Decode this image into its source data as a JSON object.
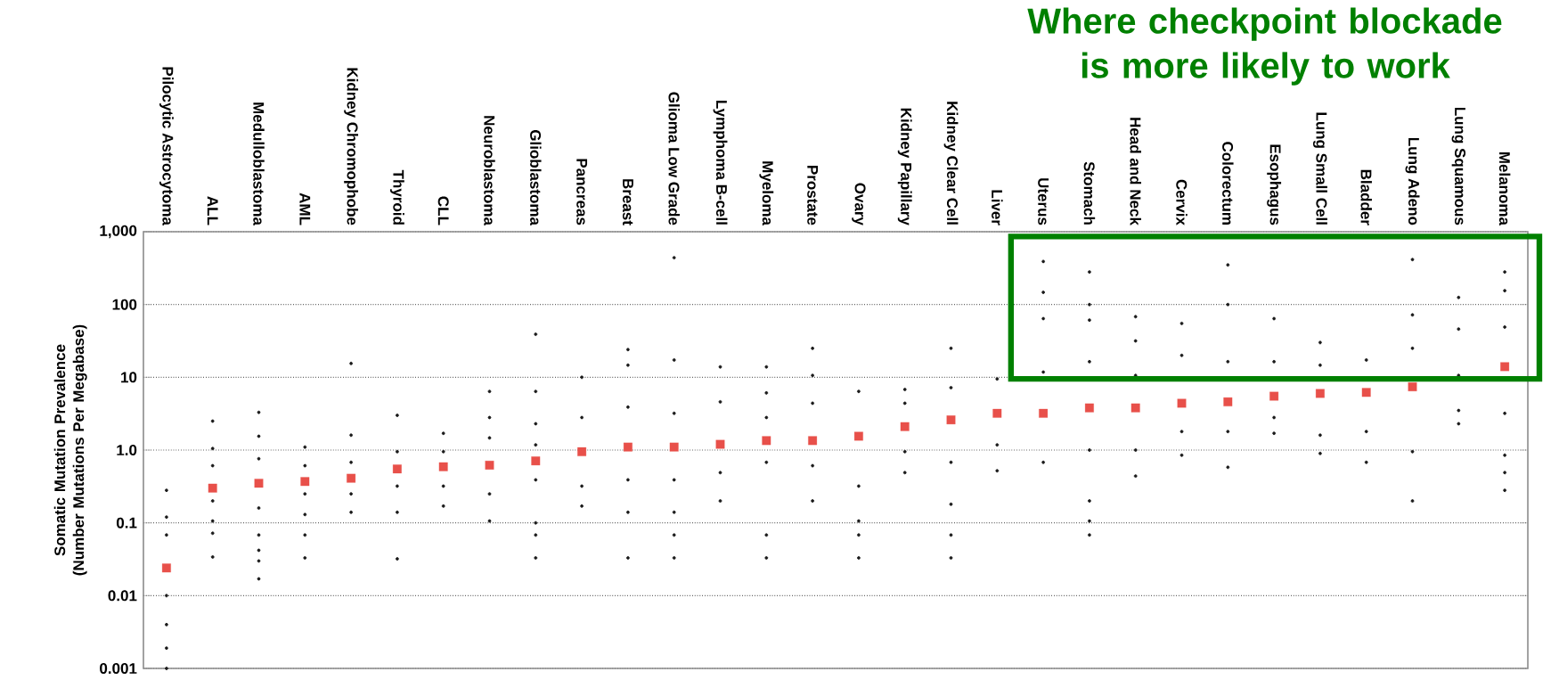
{
  "chart_data": {
    "type": "scatter",
    "annotations": [
      "Where checkpoint blockade is more likely to work"
    ],
    "ylabel": "Somatic Mutation Prevalence (Number Mutations Per Megabase)",
    "categories": [
      "Pilocytic Astrocytoma",
      "ALL",
      "Medulloblastoma",
      "AML",
      "Kidney Chromophobe",
      "Thyroid",
      "CLL",
      "Neuroblastoma",
      "Glioblastoma",
      "Pancreas",
      "Breast",
      "Glioma Low Grade",
      "Lymphoma B-cell",
      "Myeloma",
      "Prostate",
      "Ovary",
      "Kidney Papillary",
      "Kidney Clear Cell",
      "Liver",
      "Uterus",
      "Stomach",
      "Head and Neck",
      "Cervix",
      "Colorectum",
      "Esophagus",
      "Lung Small Cell",
      "Bladder",
      "Lung Adeno",
      "Lung Squamous",
      "Melanoma"
    ],
    "log": true,
    "grid": "y",
    "marker": "circle",
    "ylim": [
      0.001,
      1000
    ],
    "yticks": [
      0.001,
      0.01,
      0.1,
      {
        "value": 1,
        "label": "1.0"
      },
      10,
      100,
      {
        "value": 1000,
        "label": "1,000"
      }
    ],
    "series": [
      {
        "type": "scatter",
        "color": "#1a1a1a",
        "x": [
          "Pilocytic Astrocytoma",
          "Pilocytic Astrocytoma",
          "Pilocytic Astrocytoma",
          "Pilocytic Astrocytoma",
          "Pilocytic Astrocytoma",
          "Pilocytic Astrocytoma",
          "Pilocytic Astrocytoma",
          "ALL",
          "ALL",
          "ALL",
          "ALL",
          "ALL",
          "ALL",
          "ALL",
          "Medulloblastoma",
          "Medulloblastoma",
          "Medulloblastoma",
          "Medulloblastoma",
          "Medulloblastoma",
          "Medulloblastoma",
          "Medulloblastoma",
          "Medulloblastoma",
          "AML",
          "AML",
          "AML",
          "AML",
          "AML",
          "AML",
          "Kidney Chromophobe",
          "Kidney Chromophobe",
          "Kidney Chromophobe",
          "Kidney Chromophobe",
          "Kidney Chromophobe",
          "Thyroid",
          "Thyroid",
          "Thyroid",
          "Thyroid",
          "Thyroid",
          "CLL",
          "CLL",
          "CLL",
          "CLL",
          "Neuroblastoma",
          "Neuroblastoma",
          "Neuroblastoma",
          "Neuroblastoma",
          "Neuroblastoma",
          "Glioblastoma",
          "Glioblastoma",
          "Glioblastoma",
          "Glioblastoma",
          "Glioblastoma",
          "Glioblastoma",
          "Glioblastoma",
          "Glioblastoma",
          "Pancreas",
          "Pancreas",
          "Pancreas",
          "Pancreas",
          "Breast",
          "Breast",
          "Breast",
          "Breast",
          "Breast",
          "Breast",
          "Glioma Low Grade",
          "Glioma Low Grade",
          "Glioma Low Grade",
          "Glioma Low Grade",
          "Glioma Low Grade",
          "Glioma Low Grade",
          "Glioma Low Grade",
          "Lymphoma B-cell",
          "Lymphoma B-cell",
          "Lymphoma B-cell",
          "Lymphoma B-cell",
          "Myeloma",
          "Myeloma",
          "Myeloma",
          "Myeloma",
          "Myeloma",
          "Myeloma",
          "Prostate",
          "Prostate",
          "Prostate",
          "Prostate",
          "Prostate",
          "Ovary",
          "Ovary",
          "Ovary",
          "Ovary",
          "Ovary",
          "Kidney Papillary",
          "Kidney Papillary",
          "Kidney Papillary",
          "Kidney Papillary",
          "Kidney Clear Cell",
          "Kidney Clear Cell",
          "Kidney Clear Cell",
          "Kidney Clear Cell",
          "Kidney Clear Cell",
          "Kidney Clear Cell",
          "Liver",
          "Liver",
          "Liver",
          "Uterus",
          "Uterus",
          "Uterus",
          "Uterus",
          "Uterus",
          "Stomach",
          "Stomach",
          "Stomach",
          "Stomach",
          "Stomach",
          "Stomach",
          "Stomach",
          "Stomach",
          "Head and Neck",
          "Head and Neck",
          "Head and Neck",
          "Head and Neck",
          "Head and Neck",
          "Cervix",
          "Cervix",
          "Cervix",
          "Cervix",
          "Colorectum",
          "Colorectum",
          "Colorectum",
          "Colorectum",
          "Colorectum",
          "Esophagus",
          "Esophagus",
          "Esophagus",
          "Esophagus",
          "Lung Small Cell",
          "Lung Small Cell",
          "Lung Small Cell",
          "Lung Small Cell",
          "Bladder",
          "Bladder",
          "Bladder",
          "Lung Adeno",
          "Lung Adeno",
          "Lung Adeno",
          "Lung Adeno",
          "Lung Adeno",
          "Lung Squamous",
          "Lung Squamous",
          "Lung Squamous",
          "Lung Squamous",
          "Lung Squamous",
          "Melanoma",
          "Melanoma",
          "Melanoma",
          "Melanoma",
          "Melanoma",
          "Melanoma",
          "Melanoma"
        ],
        "values": [
          0.001,
          0.0019,
          0.004,
          0.01,
          0.068,
          0.12,
          0.28,
          0.034,
          0.072,
          0.106,
          0.2,
          0.61,
          1.05,
          2.5,
          0.017,
          0.03,
          0.042,
          0.068,
          0.16,
          0.76,
          1.55,
          3.3,
          0.033,
          0.068,
          0.13,
          0.25,
          0.61,
          1.1,
          0.14,
          0.25,
          0.68,
          1.6,
          15.5,
          0.032,
          0.14,
          0.32,
          0.95,
          3.0,
          0.17,
          0.32,
          0.95,
          1.7,
          0.106,
          0.25,
          1.47,
          2.8,
          6.4,
          0.033,
          0.068,
          0.1,
          0.39,
          1.18,
          2.3,
          6.4,
          39,
          0.17,
          0.32,
          2.8,
          10,
          0.033,
          0.14,
          0.39,
          3.9,
          14.7,
          24,
          0.033,
          0.068,
          0.14,
          0.39,
          3.2,
          17.3,
          440,
          0.2,
          0.49,
          4.6,
          13.9,
          0.033,
          0.068,
          0.68,
          2.8,
          6.1,
          13.9,
          0.2,
          0.61,
          4.4,
          10.6,
          25,
          0.033,
          0.068,
          0.106,
          0.32,
          6.4,
          0.49,
          0.95,
          4.4,
          6.8,
          0.033,
          0.068,
          0.18,
          0.68,
          7.2,
          25,
          0.52,
          1.18,
          9.5,
          0.68,
          11.8,
          64,
          147,
          390,
          0.068,
          0.106,
          0.2,
          1.0,
          16.4,
          61,
          100,
          280,
          0.44,
          1.0,
          10.6,
          31.6,
          68,
          0.85,
          1.8,
          20,
          55,
          0.58,
          1.8,
          16.4,
          100,
          350,
          1.7,
          2.8,
          16.4,
          64,
          0.9,
          1.6,
          14.7,
          30,
          0.68,
          1.8,
          17.3,
          0.2,
          0.95,
          25,
          72,
          415,
          2.3,
          3.5,
          10.6,
          46,
          125,
          0.28,
          0.49,
          0.85,
          3.2,
          49,
          155,
          280
        ]
      },
      {
        "type": "scatter",
        "marker": "square",
        "color": "#e8504a",
        "values": [
          0.024,
          0.3,
          0.35,
          0.37,
          0.41,
          0.55,
          0.59,
          0.62,
          0.71,
          0.95,
          1.1,
          1.1,
          1.2,
          1.35,
          1.35,
          1.55,
          2.1,
          2.6,
          3.2,
          3.2,
          3.8,
          3.8,
          4.4,
          4.6,
          5.5,
          6.0,
          6.2,
          7.4,
          null,
          14
        ]
      }
    ]
  }
}
